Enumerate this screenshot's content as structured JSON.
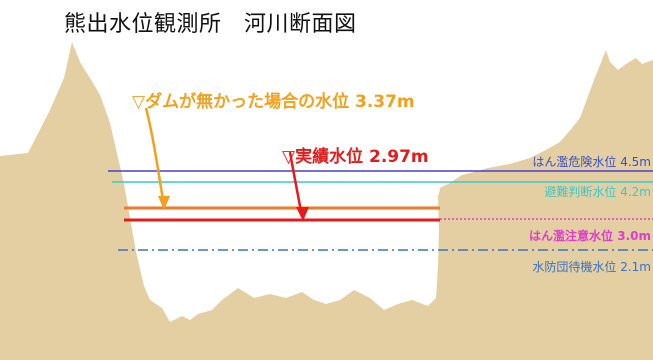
{
  "title": "熊出水位観測所　河川断面図",
  "annotations": {
    "no_dam_label": "▽ダムが無かった場合の水位 3.37m",
    "actual_label": "▽実績水位 2.97m"
  },
  "levels": [
    {
      "key": "danger",
      "label": "はん濫危険水位 4.5m",
      "color": "#4a3fd0",
      "style": "solid"
    },
    {
      "key": "evac",
      "label": "避難判断水位 4.2m",
      "color": "#3cc8c8",
      "style": "solid"
    },
    {
      "key": "no_dam",
      "label": "",
      "color": "#f07a28",
      "style": "solid"
    },
    {
      "key": "actual",
      "label": "",
      "color": "#e31b1b",
      "style": "solid"
    },
    {
      "key": "caution",
      "label": "はん濫注意水位 3.0m",
      "color": "#e23ccf",
      "style": "dotted"
    },
    {
      "key": "standby",
      "label": "水防団待機水位 2.1m",
      "color": "#3a72c8",
      "style": "dashdot"
    }
  ],
  "colors": {
    "terrain": "#e3cfa1",
    "no_dam_arrow": "#f2a01e",
    "actual_arrow": "#e31b1b"
  }
}
